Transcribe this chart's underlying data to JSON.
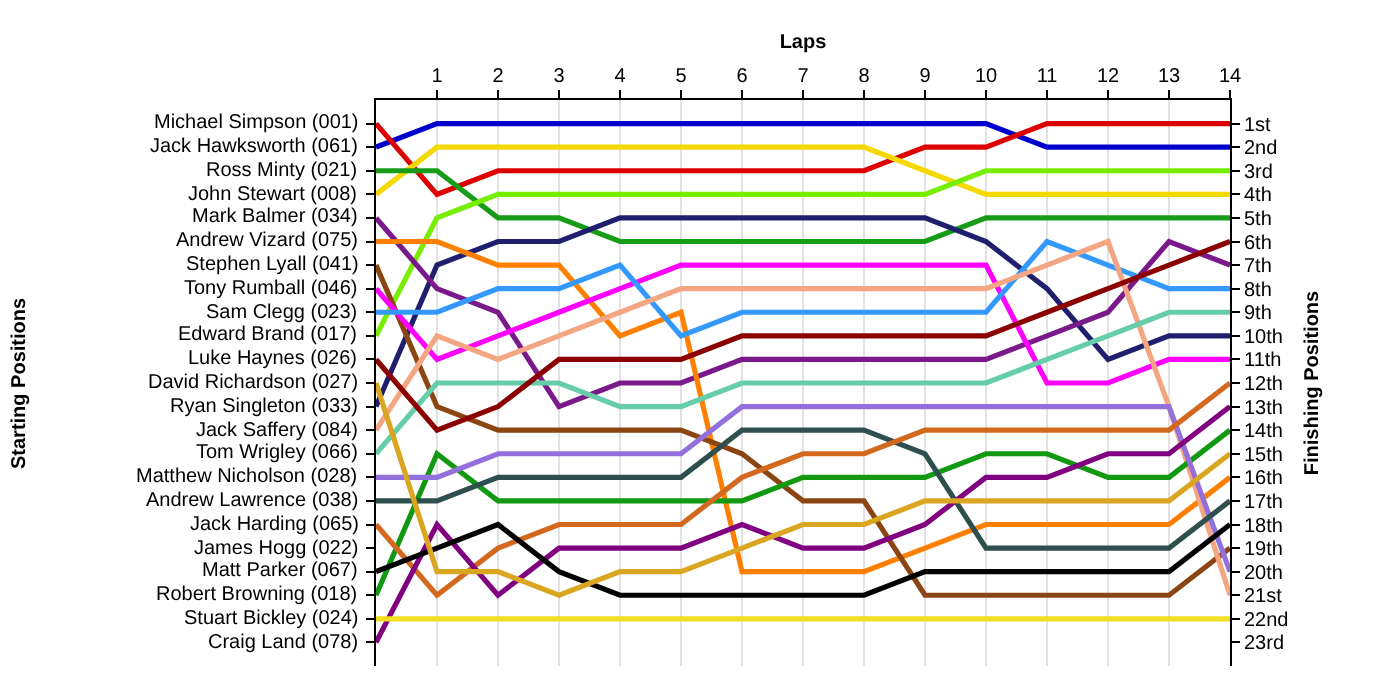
{
  "chart_data": {
    "type": "line",
    "xlabel": "Laps",
    "ylabel": "Finishing Positions",
    "x": [
      0,
      1,
      2,
      3,
      4,
      5,
      6,
      7,
      8,
      9,
      10,
      11,
      12,
      13,
      14
    ],
    "xlim": [
      0,
      14
    ],
    "xticks": [
      1,
      2,
      3,
      4,
      5,
      6,
      7,
      8,
      9,
      10,
      11,
      12,
      13,
      14
    ],
    "ylim": [
      24,
      0
    ],
    "yticks": [
      {
        "value": 1,
        "label": "1st"
      },
      {
        "value": 2,
        "label": "2nd"
      },
      {
        "value": 3,
        "label": "3rd"
      },
      {
        "value": 4,
        "label": "4th"
      },
      {
        "value": 5,
        "label": "5th"
      },
      {
        "value": 6,
        "label": "6th"
      },
      {
        "value": 7,
        "label": "7th"
      },
      {
        "value": 8,
        "label": "8th"
      },
      {
        "value": 9,
        "label": "9th"
      },
      {
        "value": 10,
        "label": "10th"
      },
      {
        "value": 11,
        "label": "11th"
      },
      {
        "value": 12,
        "label": "12th"
      },
      {
        "value": 13,
        "label": "13th"
      },
      {
        "value": 14,
        "label": "14th"
      },
      {
        "value": 15,
        "label": "15th"
      },
      {
        "value": 16,
        "label": "16th"
      },
      {
        "value": 17,
        "label": "17th"
      },
      {
        "value": 18,
        "label": "18th"
      },
      {
        "value": 19,
        "label": "19th"
      },
      {
        "value": 20,
        "label": "20th"
      },
      {
        "value": 21,
        "label": "21st"
      },
      {
        "value": 22,
        "label": "22nd"
      },
      {
        "value": 23,
        "label": "23rd"
      }
    ],
    "grid": "x",
    "annotations": [
      "Starting Positions",
      "Michael Simpson (001)",
      "Jack Hawksworth (061)",
      "Ross Minty (021)",
      "John Stewart (008)",
      "Mark Balmer (034)",
      "Andrew Vizard (075)",
      "Stephen Lyall (041)",
      "Tony Rumball (046)",
      "Sam Clegg (023)",
      "Edward Brand (017)",
      "Luke Haynes (026)",
      "David Richardson (027)",
      "Ryan Singleton (033)",
      "Jack Saffery (084)",
      "Tom Wrigley (066)",
      "Matthew Nicholson (028)",
      "Andrew Lawrence (038)",
      "Jack Harding (065)",
      "James Hogg (022)",
      "Matt Parker (067)",
      "Robert Browning (018)",
      "Stuart Bickley (024)",
      "Craig Land (078)"
    ],
    "series": [
      {
        "color": "#0000cc",
        "values": [
          2,
          1,
          1,
          1,
          1,
          1,
          1,
          1,
          1,
          1,
          1,
          2,
          2,
          2,
          2
        ]
      },
      {
        "color": "#dd0000",
        "values": [
          1,
          4,
          3,
          3,
          3,
          3,
          3,
          3,
          3,
          2,
          2,
          1,
          1,
          1,
          1
        ]
      },
      {
        "color": "#f5d800",
        "values": [
          4,
          2,
          2,
          2,
          2,
          2,
          2,
          2,
          2,
          3,
          4,
          4,
          4,
          4,
          4
        ]
      },
      {
        "color": "#179c17",
        "values": [
          3,
          3,
          5,
          5,
          6,
          6,
          6,
          6,
          6,
          6,
          5,
          5,
          5,
          5,
          5
        ]
      },
      {
        "color": "#77ee00",
        "values": [
          10,
          5,
          4,
          4,
          4,
          4,
          4,
          4,
          4,
          4,
          3,
          3,
          3,
          3,
          3
        ]
      },
      {
        "color": "#1f1f6e",
        "values": [
          13,
          7,
          6,
          6,
          5,
          5,
          5,
          5,
          5,
          5,
          6,
          8,
          11,
          10,
          10
        ]
      },
      {
        "color": "#7a1a8a",
        "values": [
          5,
          8,
          9,
          13,
          12,
          12,
          11,
          11,
          11,
          11,
          11,
          10,
          9,
          6,
          7
        ]
      },
      {
        "color": "#ff8000",
        "values": [
          6,
          6,
          7,
          7,
          10,
          9,
          20,
          20,
          20,
          19,
          18,
          18,
          18,
          18,
          16
        ]
      },
      {
        "color": "#8b4513",
        "values": [
          7,
          13,
          14,
          14,
          14,
          14,
          15,
          17,
          17,
          21,
          21,
          21,
          21,
          21,
          19
        ]
      },
      {
        "color": "#ff00ff",
        "values": [
          8,
          11,
          10,
          9,
          8,
          7,
          7,
          7,
          7,
          7,
          7,
          12,
          12,
          11,
          11
        ]
      },
      {
        "color": "#3399ff",
        "values": [
          9,
          9,
          8,
          8,
          7,
          10,
          9,
          9,
          9,
          9,
          9,
          6,
          7,
          8,
          8
        ]
      },
      {
        "color": "#f4a582",
        "values": [
          14,
          10,
          11,
          10,
          9,
          8,
          8,
          8,
          8,
          8,
          8,
          7,
          6,
          13,
          21
        ]
      },
      {
        "color": "#66cdaa",
        "values": [
          15,
          12,
          12,
          12,
          13,
          13,
          12,
          12,
          12,
          12,
          12,
          11,
          10,
          9,
          9
        ]
      },
      {
        "color": "#8b0000",
        "values": [
          11,
          14,
          13,
          11,
          11,
          11,
          10,
          10,
          10,
          10,
          10,
          9,
          8,
          7,
          6
        ]
      },
      {
        "color": "#119911",
        "values": [
          21,
          15,
          17,
          17,
          17,
          17,
          17,
          16,
          16,
          16,
          15,
          15,
          16,
          16,
          14
        ]
      },
      {
        "color": "#9370db",
        "values": [
          16,
          16,
          15,
          15,
          15,
          15,
          13,
          13,
          13,
          13,
          13,
          13,
          13,
          13,
          20
        ]
      },
      {
        "color": "#2f4f4f",
        "values": [
          17,
          17,
          16,
          16,
          16,
          16,
          14,
          14,
          14,
          15,
          19,
          19,
          19,
          19,
          17
        ]
      },
      {
        "color": "#d2691e",
        "values": [
          18,
          21,
          19,
          18,
          18,
          18,
          16,
          15,
          15,
          14,
          14,
          14,
          14,
          14,
          12
        ]
      },
      {
        "color": "#800080",
        "values": [
          23,
          18,
          21,
          19,
          19,
          19,
          18,
          19,
          19,
          18,
          16,
          16,
          15,
          15,
          13
        ]
      },
      {
        "color": "#000000",
        "values": [
          20,
          19,
          18,
          20,
          21,
          21,
          21,
          21,
          21,
          20,
          20,
          20,
          20,
          20,
          18
        ]
      },
      {
        "color": "#daa520",
        "values": [
          12,
          20,
          20,
          21,
          20,
          20,
          19,
          18,
          18,
          17,
          17,
          17,
          17,
          17,
          15
        ]
      },
      {
        "color": "#f0e020",
        "values": [
          22,
          22,
          22,
          22,
          22,
          22,
          22,
          22,
          22,
          22,
          22,
          22,
          22,
          22,
          22
        ]
      }
    ]
  }
}
